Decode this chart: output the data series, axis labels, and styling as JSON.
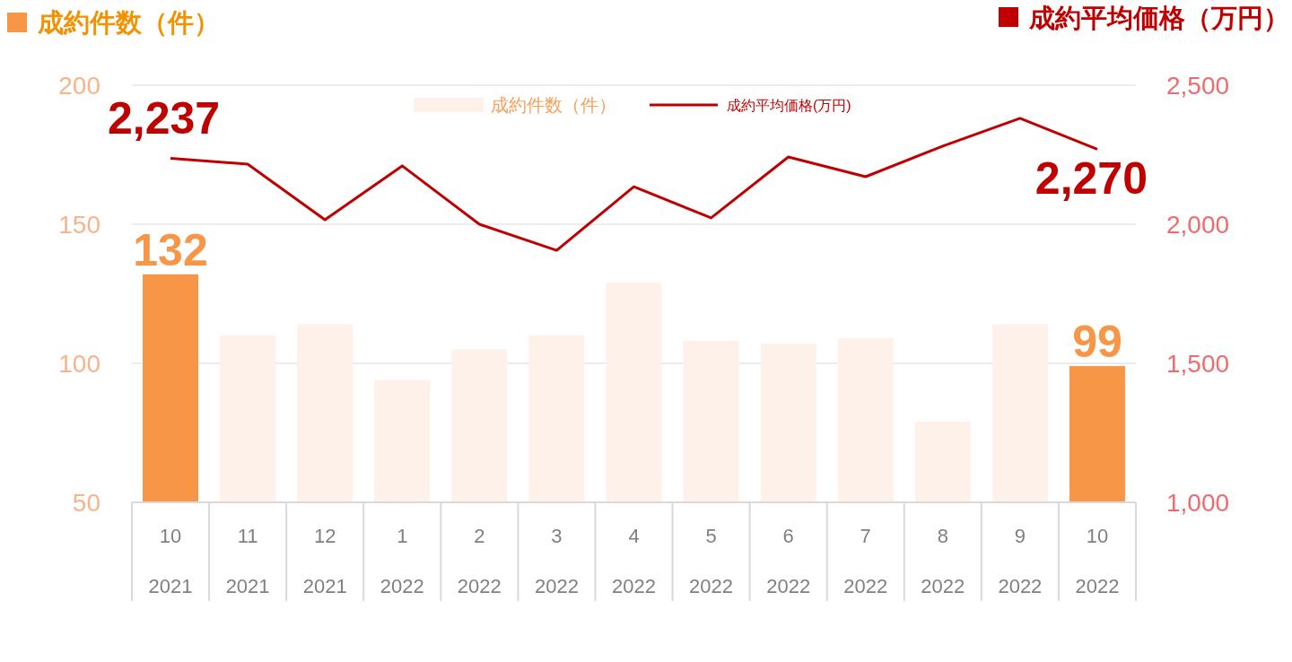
{
  "chart_data": {
    "type": "bar",
    "ylabel": "成約件数（件）",
    "y2label": "成約平均価格（万円）",
    "categories": [
      "10\n2021",
      "11\n2021",
      "12\n2021",
      "1\n2022",
      "2\n2022",
      "3\n2022",
      "4\n2022",
      "5\n2022",
      "6\n2022",
      "7\n2022",
      "8\n2022",
      "9\n2022",
      "10\n2022"
    ],
    "series": [
      {
        "name": "成約件数（件）",
        "color": "#fdf1e9",
        "colors": [
          "#f79646",
          "#fdf1e9",
          "#fdf1e9",
          "#fdf1e9",
          "#fdf1e9",
          "#fdf1e9",
          "#fdf1e9",
          "#fdf1e9",
          "#fdf1e9",
          "#fdf1e9",
          "#fdf1e9",
          "#fdf1e9",
          "#f79646"
        ],
        "values": [
          132,
          110,
          114,
          94,
          105,
          110,
          129,
          108,
          107,
          109,
          79,
          114,
          99
        ],
        "value_labels": [
          "132",
          null,
          null,
          null,
          null,
          null,
          null,
          null,
          null,
          null,
          null,
          null,
          "99"
        ]
      },
      {
        "name": "成約平均価格(万円)",
        "type": "line",
        "axis": "y2",
        "color": "#c00000",
        "values": [
          2237,
          2216,
          2016,
          2210,
          2000,
          1906,
          2135,
          2023,
          2242,
          2171,
          2281,
          2381,
          2270
        ],
        "value_labels": [
          "2,237",
          null,
          null,
          null,
          null,
          null,
          null,
          null,
          null,
          null,
          null,
          null,
          "2,270"
        ]
      }
    ],
    "ylim": [
      50,
      200
    ],
    "yticks": [
      50,
      100,
      150,
      200
    ],
    "y2lim": [
      1000,
      2500
    ],
    "y2ticks": [
      {
        "value": 1000,
        "label": "1,000"
      },
      {
        "value": 1500,
        "label": "1,500"
      },
      {
        "value": 2000,
        "label": "2,000"
      },
      {
        "value": 2500,
        "label": "2,500"
      }
    ],
    "grid": "y",
    "legend": "top"
  }
}
